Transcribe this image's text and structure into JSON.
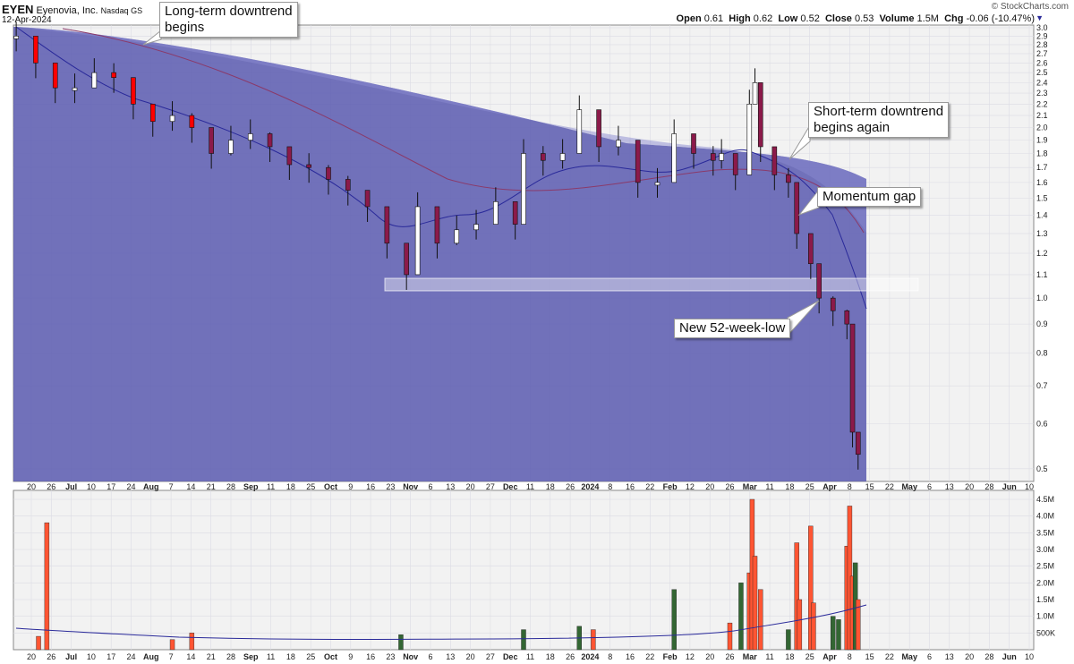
{
  "header": {
    "symbol": "EYEN",
    "company": "Eyenovia, Inc.",
    "exchange": "Nasdaq GS",
    "date": "12-Apr-2024",
    "brand": "© StockCharts.com",
    "ohlc": {
      "open_label": "Open",
      "open": "0.61",
      "high_label": "High",
      "high": "0.62",
      "low_label": "Low",
      "low": "0.52",
      "close_label": "Close",
      "close": "0.53",
      "volume_label": "Volume",
      "volume": "1.5M",
      "chg_label": "Chg",
      "chg": "-0.06 (-10.47%)"
    }
  },
  "annotations": {
    "long_term": "Long-term downtrend\nbegins",
    "short_term": "Short-term downtrend\nbegins again",
    "momentum_gap": "Momentum gap",
    "new_low": "New 52-week-low"
  },
  "colors": {
    "band": "#5a5ab0",
    "candle_down_dark": "#8b1a4a",
    "candle_down_red": "#ff0000",
    "volume_up": "#336633",
    "volume_down": "#ff5533",
    "ma_line": "#2a2a9a",
    "ma_long_line": "#8a3a6a"
  },
  "chart_data": [
    {
      "type": "candlestick",
      "title": "EYEN Eyenovia, Inc. Nasdaq GS",
      "y_scale": "log",
      "ylim": [
        0.48,
        3.0
      ],
      "y_ticks": [
        "3.0",
        "2.9",
        "2.8",
        "2.7",
        "2.6",
        "2.5",
        "2.4",
        "2.3",
        "2.2",
        "2.1",
        "2.0",
        "1.9",
        "1.8",
        "1.7",
        "1.6",
        "1.5",
        "1.4",
        "1.3",
        "1.2",
        "1.1",
        "1.0",
        "0.9",
        "0.8",
        "0.7",
        "0.6",
        "0.5"
      ],
      "x_ticks": [
        "20",
        "26",
        "Jul",
        "10",
        "17",
        "24",
        "Aug",
        "7",
        "14",
        "21",
        "28",
        "Sep",
        "11",
        "18",
        "25",
        "Oct",
        "9",
        "16",
        "23",
        "Nov",
        "6",
        "13",
        "20",
        "27",
        "Dec",
        "11",
        "18",
        "26",
        "2024",
        "8",
        "16",
        "22",
        "Feb",
        "12",
        "20",
        "26",
        "Mar",
        "11",
        "18",
        "25",
        "Apr",
        "8",
        "15",
        "22",
        "May",
        "6",
        "13",
        "20",
        "28",
        "Jun",
        "10"
      ],
      "x_range": [
        "2023-06-14",
        "2024-06-14"
      ],
      "ohlc": [
        [
          "2023-06-15",
          2.9
        ],
        [
          "2023-06-22",
          2.6
        ],
        [
          "2023-06-29",
          2.35
        ],
        [
          "2023-07-06",
          2.35
        ],
        [
          "2023-07-13",
          2.5
        ],
        [
          "2023-07-20",
          2.45
        ],
        [
          "2023-07-27",
          2.2
        ],
        [
          "2023-08-03",
          2.05
        ],
        [
          "2023-08-10",
          2.1
        ],
        [
          "2023-08-17",
          2.0
        ],
        [
          "2023-08-24",
          1.8
        ],
        [
          "2023-08-31",
          1.9
        ],
        [
          "2023-09-07",
          1.95
        ],
        [
          "2023-09-14",
          1.85
        ],
        [
          "2023-09-21",
          1.72
        ],
        [
          "2023-09-28",
          1.7
        ],
        [
          "2023-10-05",
          1.62
        ],
        [
          "2023-10-12",
          1.55
        ],
        [
          "2023-10-19",
          1.45
        ],
        [
          "2023-10-26",
          1.25
        ],
        [
          "2023-11-02",
          1.1
        ],
        [
          "2023-11-06",
          1.45
        ],
        [
          "2023-11-13",
          1.25
        ],
        [
          "2023-11-20",
          1.32
        ],
        [
          "2023-11-27",
          1.35
        ],
        [
          "2023-12-04",
          1.48
        ],
        [
          "2023-12-11",
          1.35
        ],
        [
          "2023-12-14",
          1.8
        ],
        [
          "2023-12-21",
          1.75
        ],
        [
          "2023-12-28",
          1.8
        ],
        [
          "2024-01-03",
          2.15
        ],
        [
          "2024-01-10",
          1.85
        ],
        [
          "2024-01-17",
          1.9
        ],
        [
          "2024-01-24",
          1.6
        ],
        [
          "2024-01-31",
          1.6
        ],
        [
          "2024-02-06",
          1.95
        ],
        [
          "2024-02-13",
          1.8
        ],
        [
          "2024-02-20",
          1.75
        ],
        [
          "2024-02-23",
          1.8
        ],
        [
          "2024-02-28",
          1.65
        ],
        [
          "2024-03-04",
          2.2
        ],
        [
          "2024-03-06",
          2.4
        ],
        [
          "2024-03-08",
          1.85
        ],
        [
          "2024-03-13",
          1.65
        ],
        [
          "2024-03-18",
          1.6
        ],
        [
          "2024-03-21",
          1.3
        ],
        [
          "2024-03-26",
          1.15
        ],
        [
          "2024-03-29",
          1.0
        ],
        [
          "2024-04-03",
          0.95
        ],
        [
          "2024-04-08",
          0.9
        ],
        [
          "2024-04-10",
          0.58
        ],
        [
          "2024-04-12",
          0.53
        ]
      ]
    },
    {
      "type": "bar",
      "title": "Volume",
      "ylim": [
        0,
        4.5
      ],
      "unit": "M",
      "y_ticks": [
        "4.5M",
        "4.0M",
        "3.5M",
        "3.0M",
        "2.5M",
        "2.0M",
        "1.5M",
        "1.0M",
        "500K"
      ],
      "series": [
        {
          "values": [
            {
              "date": "2023-06-23",
              "v": 0.4,
              "dir": "down"
            },
            {
              "date": "2023-06-26",
              "v": 3.8,
              "dir": "down"
            },
            {
              "date": "2023-08-10",
              "v": 0.3,
              "dir": "down"
            },
            {
              "date": "2023-08-17",
              "v": 0.5,
              "dir": "down"
            },
            {
              "date": "2023-10-31",
              "v": 0.45,
              "dir": "up"
            },
            {
              "date": "2023-12-14",
              "v": 0.6,
              "dir": "up"
            },
            {
              "date": "2024-01-03",
              "v": 0.7,
              "dir": "up"
            },
            {
              "date": "2024-01-08",
              "v": 0.6,
              "dir": "down"
            },
            {
              "date": "2024-02-06",
              "v": 1.8,
              "dir": "up"
            },
            {
              "date": "2024-02-26",
              "v": 0.8,
              "dir": "down"
            },
            {
              "date": "2024-03-01",
              "v": 2.0,
              "dir": "up"
            },
            {
              "date": "2024-03-04",
              "v": 2.3,
              "dir": "down"
            },
            {
              "date": "2024-03-05",
              "v": 4.5,
              "dir": "down"
            },
            {
              "date": "2024-03-06",
              "v": 2.8,
              "dir": "down"
            },
            {
              "date": "2024-03-08",
              "v": 1.8,
              "dir": "down"
            },
            {
              "date": "2024-03-18",
              "v": 0.6,
              "dir": "up"
            },
            {
              "date": "2024-03-21",
              "v": 3.2,
              "dir": "down"
            },
            {
              "date": "2024-03-22",
              "v": 1.5,
              "dir": "down"
            },
            {
              "date": "2024-03-26",
              "v": 3.7,
              "dir": "down"
            },
            {
              "date": "2024-03-27",
              "v": 1.4,
              "dir": "down"
            },
            {
              "date": "2024-04-03",
              "v": 1.0,
              "dir": "up"
            },
            {
              "date": "2024-04-05",
              "v": 0.9,
              "dir": "up"
            },
            {
              "date": "2024-04-08",
              "v": 3.1,
              "dir": "down"
            },
            {
              "date": "2024-04-09",
              "v": 4.3,
              "dir": "down"
            },
            {
              "date": "2024-04-10",
              "v": 2.2,
              "dir": "down"
            },
            {
              "date": "2024-04-11",
              "v": 2.6,
              "dir": "up"
            },
            {
              "date": "2024-04-12",
              "v": 1.5,
              "dir": "down"
            }
          ]
        }
      ]
    }
  ]
}
